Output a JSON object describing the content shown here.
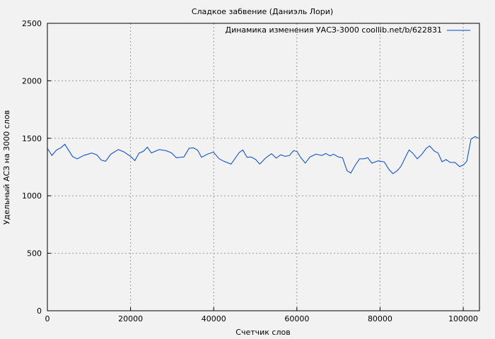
{
  "chart_data": {
    "type": "line",
    "title": "Сладкое забвение (Даниэль Лори)",
    "xlabel": "Счетчик слов",
    "ylabel": "Удельный АСЗ на 3000 слов",
    "xlim": [
      0,
      103900
    ],
    "ylim": [
      0,
      2500
    ],
    "xticks": [
      0,
      20000,
      40000,
      60000,
      80000,
      100000
    ],
    "yticks": [
      0,
      500,
      1000,
      1500,
      2000,
      2500
    ],
    "grid": true,
    "legend_position": "top-right",
    "series": [
      {
        "name": "Динамика изменения УАСЗ-3000 coollib.net/b/622831",
        "color": "#0047c8",
        "x": [
          0,
          1080,
          2200,
          3230,
          4200,
          6050,
          7200,
          8730,
          10700,
          11850,
          13000,
          14000,
          15250,
          17060,
          18360,
          20070,
          21030,
          22050,
          23070,
          24040,
          25000,
          26870,
          28570,
          29880,
          31000,
          32820,
          34070,
          35090,
          36100,
          37070,
          38490,
          39910,
          41330,
          42460,
          44160,
          46140,
          47000,
          48000,
          49000,
          50120,
          51070,
          52500,
          53910,
          55050,
          56070,
          57200,
          58220,
          59180,
          60030,
          60880,
          62020,
          63150,
          64570,
          65990,
          66960,
          67970,
          68830,
          69950,
          70970,
          72050,
          72960,
          73920,
          75060,
          76190,
          77040,
          78060,
          79590,
          81010,
          82140,
          83110,
          84130,
          84980,
          86960,
          87810,
          88950,
          90080,
          91110,
          91950,
          93030,
          93930,
          94900,
          95860,
          96880,
          98010,
          99150,
          100170,
          100850,
          101870,
          102840,
          103690
        ],
        "y": [
          1413,
          1351,
          1398,
          1417,
          1448,
          1341,
          1321,
          1351,
          1372,
          1356,
          1310,
          1300,
          1362,
          1402,
          1382,
          1341,
          1306,
          1372,
          1386,
          1423,
          1372,
          1402,
          1392,
          1372,
          1331,
          1337,
          1413,
          1417,
          1398,
          1335,
          1362,
          1380,
          1321,
          1300,
          1275,
          1376,
          1398,
          1335,
          1337,
          1315,
          1275,
          1329,
          1366,
          1327,
          1356,
          1343,
          1351,
          1392,
          1386,
          1335,
          1284,
          1337,
          1362,
          1351,
          1368,
          1347,
          1362,
          1337,
          1331,
          1218,
          1198,
          1259,
          1321,
          1321,
          1331,
          1284,
          1304,
          1294,
          1229,
          1192,
          1218,
          1253,
          1398,
          1372,
          1321,
          1362,
          1413,
          1433,
          1388,
          1372,
          1296,
          1315,
          1290,
          1290,
          1253,
          1273,
          1300,
          1494,
          1515,
          1501
        ]
      }
    ]
  }
}
